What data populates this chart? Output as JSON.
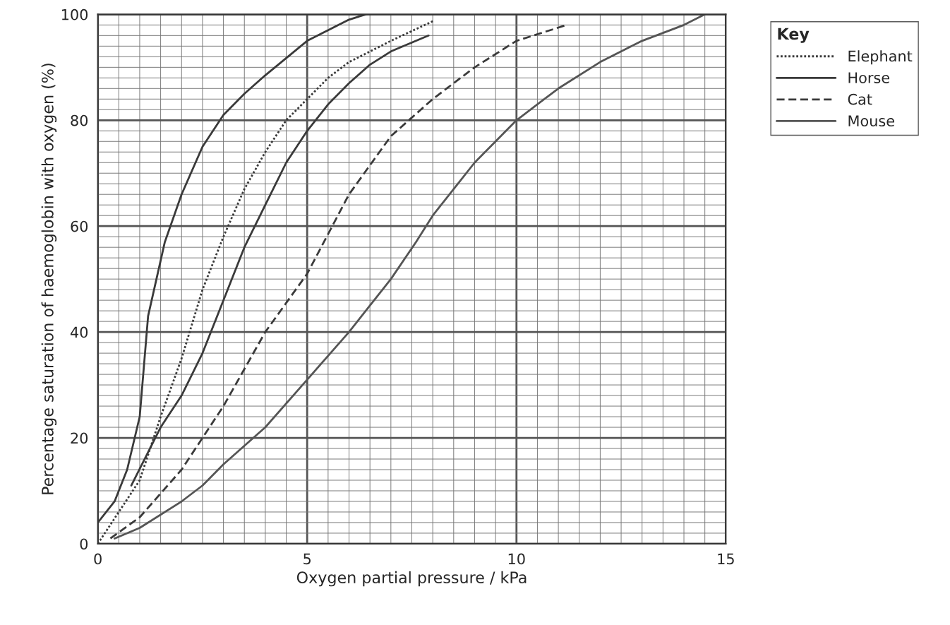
{
  "chart_data": {
    "type": "line",
    "xlabel": "Oxygen partial pressure / kPa",
    "ylabel": "Percentage saturation of haemoglobin with oxygen (%)",
    "legend_title": "Key",
    "xlim": [
      0,
      15
    ],
    "xticks": [
      0,
      5,
      10,
      15
    ],
    "ylim": [
      0,
      100
    ],
    "yticks": [
      0,
      20,
      40,
      60,
      80,
      100
    ],
    "grid": true,
    "legend": "top right",
    "series": [
      {
        "name": "Elephant",
        "color": "#3a3a3a",
        "line_style": "dotted",
        "x": [
          0,
          0.5,
          1,
          1.5,
          2,
          2.5,
          3,
          3.5,
          4,
          4.5,
          5,
          5.5,
          6,
          7,
          8
        ],
        "values": [
          0,
          6,
          12,
          24,
          35,
          48,
          58,
          67,
          74,
          80,
          84,
          88,
          91,
          95,
          98.7
        ]
      },
      {
        "name": "Horse",
        "color": "#3a3a3a",
        "line_style": "solid",
        "x": [
          0.8,
          1.5,
          2,
          2.5,
          3,
          3.5,
          4,
          4.5,
          5,
          5.5,
          6,
          6.5,
          7,
          7.9
        ],
        "values": [
          11,
          22,
          28,
          36,
          46,
          56,
          64,
          72,
          78,
          83,
          87,
          90.5,
          93,
          96
        ]
      },
      {
        "name": "Cat",
        "color": "#3a3a3a",
        "line_style": "dashed",
        "x": [
          0.3,
          1,
          2,
          2.5,
          3,
          4,
          5,
          6,
          7,
          8,
          9,
          10,
          11.2
        ],
        "values": [
          1,
          5,
          14,
          20,
          26,
          40,
          51,
          66,
          77,
          84,
          90,
          95,
          98
        ]
      },
      {
        "name": "Mouse",
        "color": "#555555",
        "line_style": "solid",
        "x": [
          0.4,
          1,
          2,
          2.5,
          3,
          4,
          5,
          6,
          7,
          7.6,
          8,
          9,
          10,
          11,
          12,
          13,
          14,
          14.5
        ],
        "values": [
          1,
          3,
          8,
          11,
          15,
          22,
          31,
          40,
          50,
          57,
          62,
          72,
          80,
          86,
          91,
          95,
          98,
          100
        ]
      },
      {
        "color": "#3a3a3a",
        "line_style": "solid",
        "x": [
          0,
          0.4,
          0.7,
          1,
          1.2,
          1.6,
          2,
          2.5,
          3,
          3.5,
          4,
          5,
          6,
          6.4
        ],
        "values": [
          4,
          8,
          14,
          24,
          43,
          57,
          66,
          75,
          81,
          85,
          88.5,
          95,
          99,
          100
        ]
      }
    ]
  }
}
